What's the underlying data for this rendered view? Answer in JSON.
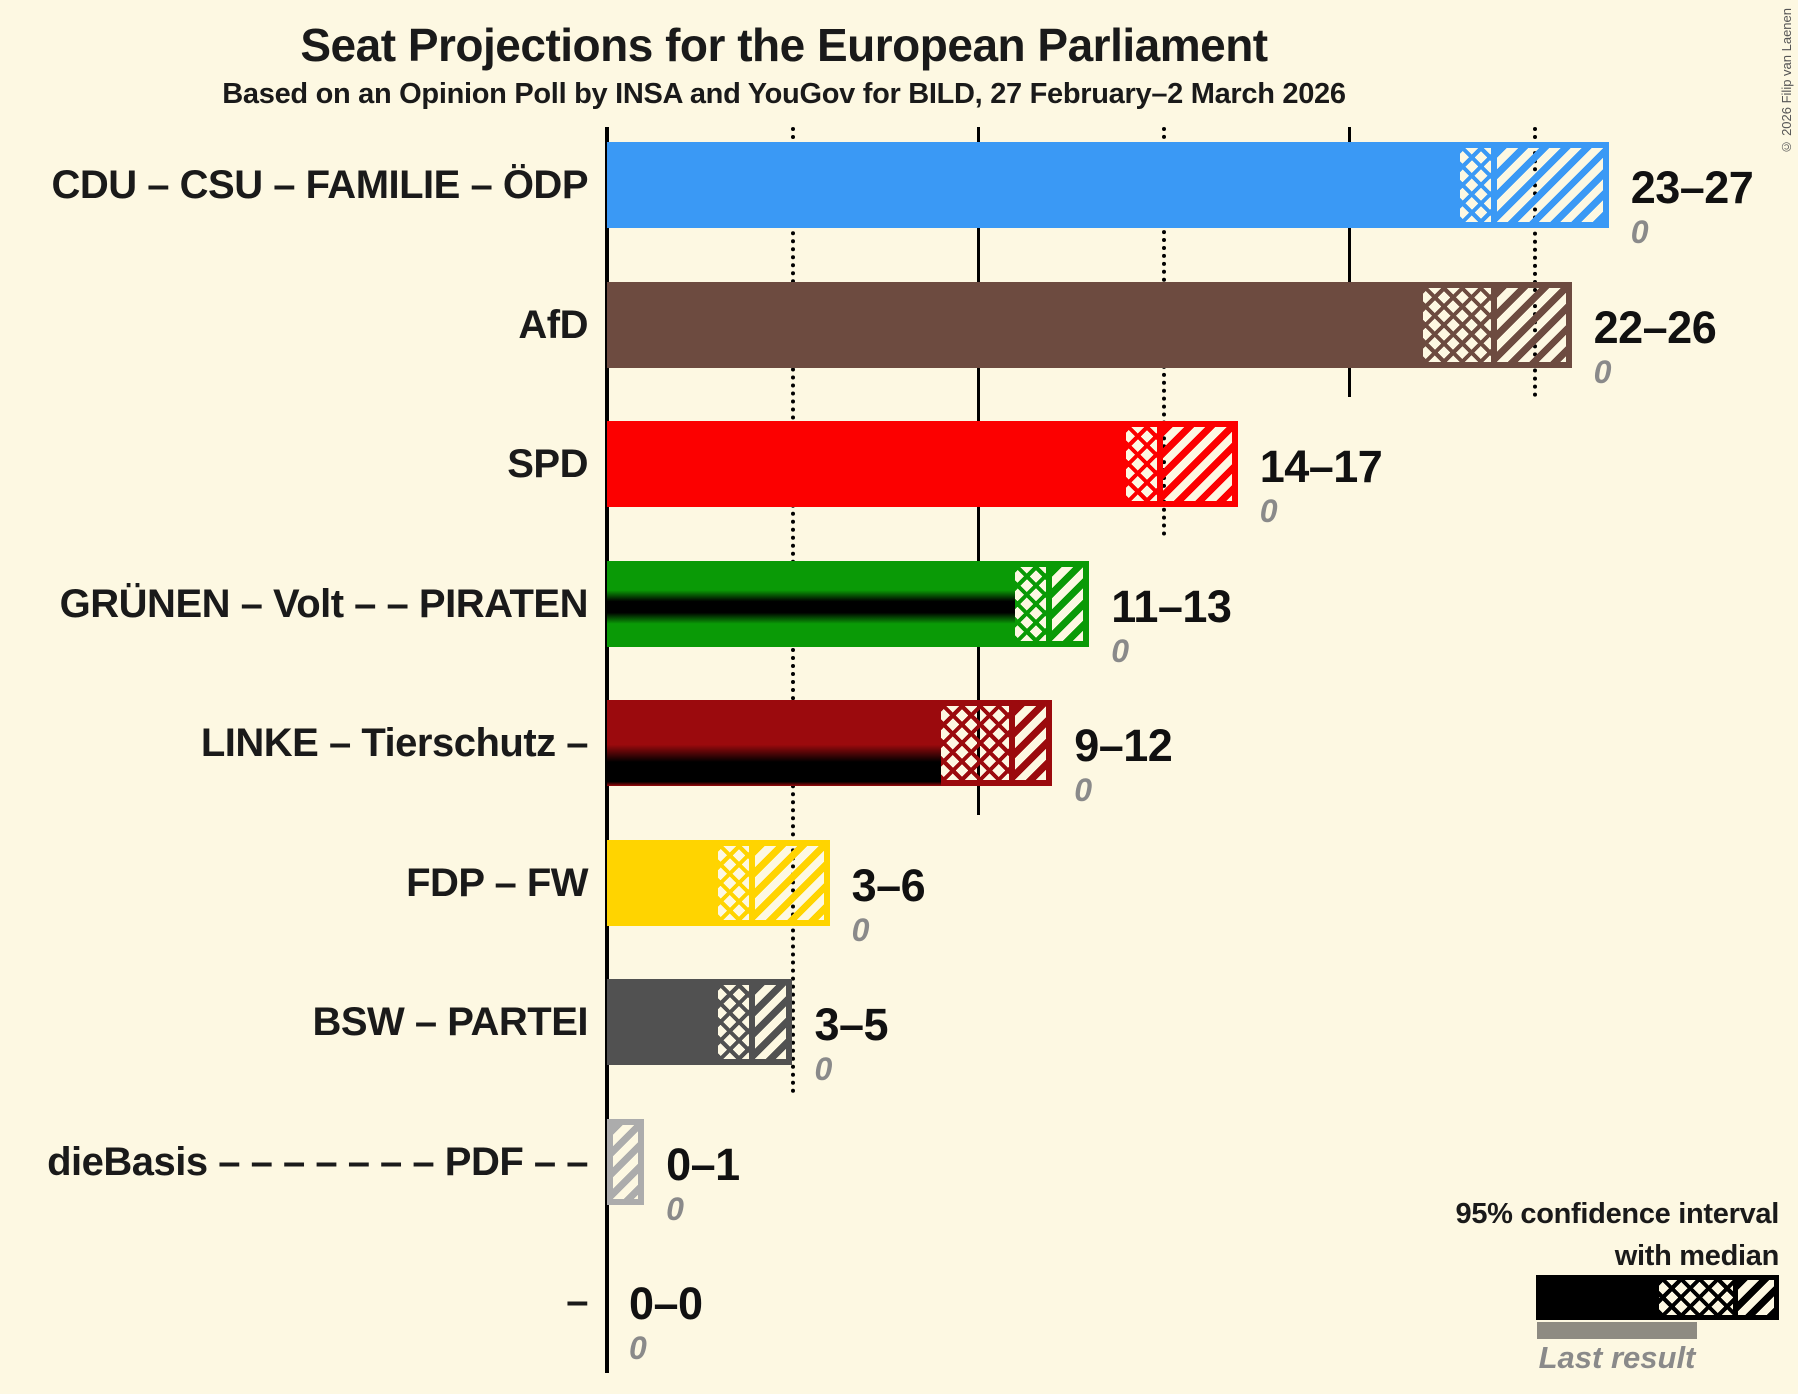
{
  "title": "Seat Projections for the European Parliament",
  "subtitle": "Based on an Opinion Poll by INSA and YouGov for BILD, 27 February–2 March 2026",
  "copyright": "© 2026 Filip van Laenen",
  "legend": {
    "line1": "95% confidence interval",
    "line2": "with median",
    "last_result_label": "Last result"
  },
  "chart_data": {
    "type": "bar",
    "orientation": "horizontal",
    "unit": "seats",
    "x_axis": {
      "min": 0,
      "max": 27,
      "gridlines": [
        {
          "seat": 5,
          "style": "dotted"
        },
        {
          "seat": 10,
          "style": "solid"
        },
        {
          "seat": 15,
          "style": "dotted"
        },
        {
          "seat": 20,
          "style": "solid"
        },
        {
          "seat": 25,
          "style": "dotted"
        }
      ]
    },
    "parties": [
      {
        "label": "CDU – CSU – FAMILIE – ÖDP",
        "low": 23,
        "median": 24,
        "high": 27,
        "range_label": "23–27",
        "last_result": "0",
        "color": "#3A99F5",
        "stripe": "none"
      },
      {
        "label": "AfD",
        "low": 22,
        "median": 24,
        "high": 26,
        "range_label": "22–26",
        "last_result": "0",
        "color": "#6D4B40",
        "stripe": "none"
      },
      {
        "label": "SPD",
        "low": 14,
        "median": 15,
        "high": 17,
        "range_label": "14–17",
        "last_result": "0",
        "color": "#FC0000",
        "stripe": "none"
      },
      {
        "label": "GRÜNEN – Volt – – PIRATEN",
        "low": 11,
        "median": 12,
        "high": 13,
        "range_label": "11–13",
        "last_result": "0",
        "color": "#0A9A06",
        "stripe": "center-black"
      },
      {
        "label": "LINKE – Tierschutz –",
        "low": 9,
        "median": 11,
        "high": 12,
        "range_label": "9–12",
        "last_result": "0",
        "color": "#9B0A0D",
        "stripe": "bottom-black"
      },
      {
        "label": "FDP – FW",
        "low": 3,
        "median": 4,
        "high": 6,
        "range_label": "3–6",
        "last_result": "0",
        "color": "#FFD400",
        "stripe": "none"
      },
      {
        "label": "BSW – PARTEI",
        "low": 3,
        "median": 4,
        "high": 5,
        "range_label": "3–5",
        "last_result": "0",
        "color": "#515151",
        "stripe": "none"
      },
      {
        "label": "dieBasis – – – – – – – PDF – –",
        "low": 0,
        "median": 0,
        "high": 1,
        "range_label": "0–1",
        "last_result": "0",
        "color": "#ACACAC",
        "stripe": "none"
      },
      {
        "label": "–",
        "low": 0,
        "median": 0,
        "high": 0,
        "range_label": "0–0",
        "last_result": "0",
        "color": "#000000",
        "stripe": "none"
      }
    ]
  }
}
